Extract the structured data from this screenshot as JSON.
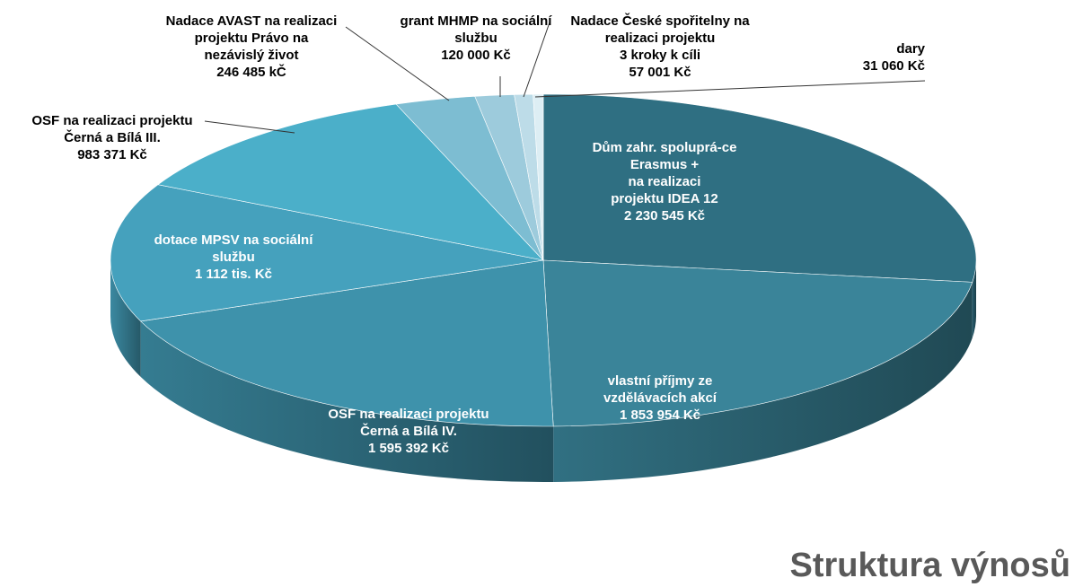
{
  "chart_data": {
    "type": "pie",
    "title": "Struktura výnosů",
    "categories": [
      "Dům zahr. spoluprá-ce\nErasmus +\nna realizaci\nprojektu IDEA 12",
      "vlastní příjmy ze\nvzdělávacích akcí",
      "OSF na realizaci projektu\nČerná a Bílá IV.",
      "dotace MPSV na sociální\nslužbu",
      "OSF na realizaci projektu\nČerná a Bílá III.",
      "Nadace AVAST na realizaci\nprojektu Právo na\nnezávislý život",
      "grant MHMP na sociální\nslužbu",
      "Nadace České spořitelny na\nrealizaci projektu\n3 kroky k cíli",
      "dary"
    ],
    "values": [
      2230545,
      1853954,
      1595392,
      1112000,
      983371,
      246485,
      120000,
      57001,
      31060
    ],
    "value_labels": [
      "2 230 545 Kč",
      "1 853 954 Kč",
      "1 595 392 Kč",
      "1 112 tis. Kč",
      "983 371 Kč",
      "246 485 kČ",
      "120 000 Kč",
      "57 001 Kč",
      "31 060 Kč"
    ],
    "colors": [
      "#2f6f82",
      "#3a8499",
      "#3e92ab",
      "#45a1bd",
      "#4bafc9",
      "#7dbdd2",
      "#9dcbdc",
      "#bddce8",
      "#ddeef4"
    ]
  }
}
